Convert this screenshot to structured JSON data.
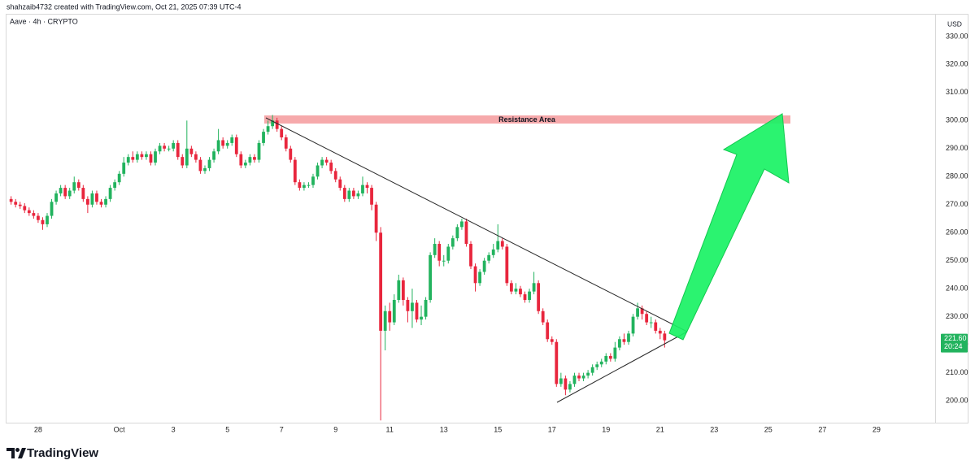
{
  "chart_data": {
    "type": "candlestick",
    "caption": "shahzaib4732 created with TradingView.com, Oct 21, 2025 07:39 UTC-4",
    "title": "Aave · 4h · CRYPTO",
    "currency": "USD",
    "annotation": "Resistance Area",
    "countdown": "20:24",
    "brand": "TradingView",
    "up_color": "#22b35e",
    "down_color": "#e8263d",
    "grid": false,
    "last_price": {
      "value": 221.6,
      "label": "221.60"
    },
    "xlim": [
      -3.17,
      31.17
    ],
    "xticks": [
      {
        "value": -2,
        "label": "28"
      },
      {
        "value": 1,
        "label": "Oct"
      },
      3,
      5,
      7,
      9,
      11,
      13,
      15,
      17,
      19,
      21,
      23,
      25,
      27,
      29
    ],
    "ylim": [
      192.2,
      337.8
    ],
    "yticks": [
      {
        "value": 200,
        "label": "200.00"
      },
      {
        "value": 210,
        "label": "210.00"
      },
      {
        "value": 220,
        "label": "220.00"
      },
      {
        "value": 230,
        "label": "230.00"
      },
      {
        "value": 240,
        "label": "240.00"
      },
      {
        "value": 250,
        "label": "250.00"
      },
      {
        "value": 260,
        "label": "260.00"
      },
      {
        "value": 270,
        "label": "270.00"
      },
      {
        "value": 280,
        "label": "280.00"
      },
      {
        "value": 290,
        "label": "290.00"
      },
      {
        "value": 300,
        "label": "300.00"
      },
      {
        "value": 310,
        "label": "310.00"
      },
      {
        "value": 320,
        "label": "320.00"
      },
      {
        "value": 330,
        "label": "330.00"
      }
    ],
    "x": [
      -3,
      -2.8333,
      -2.6667,
      -2.5,
      -2.3333,
      -2.1667,
      -2,
      -1.8333,
      -1.6667,
      -1.5,
      -1.3333,
      -1.1667,
      -1,
      -0.8333,
      -0.6667,
      -0.5,
      -0.3333,
      -0.1667,
      0,
      0.1667,
      0.3333,
      0.5,
      0.6667,
      0.8333,
      1,
      1.1667,
      1.3333,
      1.5,
      1.6667,
      1.8333,
      2,
      2.1667,
      2.3333,
      2.5,
      2.6667,
      2.8333,
      3,
      3.1667,
      3.3333,
      3.5,
      3.6667,
      3.8333,
      4,
      4.1667,
      4.3333,
      4.5,
      4.6667,
      4.8333,
      5,
      5.1667,
      5.3333,
      5.5,
      5.6667,
      5.8333,
      6,
      6.1667,
      6.3333,
      6.5,
      6.6667,
      6.8333,
      7,
      7.1667,
      7.3333,
      7.5,
      7.6667,
      7.8333,
      8,
      8.1667,
      8.3333,
      8.5,
      8.6667,
      8.8333,
      9,
      9.1667,
      9.3333,
      9.5,
      9.6667,
      9.8333,
      10,
      10.1667,
      10.3333,
      10.5,
      10.6667,
      10.8333,
      11,
      11.1667,
      11.3333,
      11.5,
      11.6667,
      11.8333,
      12,
      12.1667,
      12.3333,
      12.5,
      12.6667,
      12.8333,
      13,
      13.1667,
      13.3333,
      13.5,
      13.6667,
      13.8333,
      14,
      14.1667,
      14.3333,
      14.5,
      14.6667,
      14.8333,
      15,
      15.1667,
      15.3333,
      15.5,
      15.6667,
      15.8333,
      16,
      16.1667,
      16.3333,
      16.5,
      16.6667,
      16.8333,
      17,
      17.1667,
      17.3333,
      17.5,
      17.6667,
      17.8333,
      18,
      18.1667,
      18.3333,
      18.5,
      18.6667,
      18.8333,
      19,
      19.1667,
      19.3333,
      19.5,
      19.6667,
      19.8333,
      20,
      20.1667,
      20.3333,
      20.5,
      20.6667,
      20.8333,
      21,
      21.1667
    ],
    "open": [
      272,
      271,
      270,
      269.5,
      268,
      267,
      266,
      264.5,
      263,
      266,
      271,
      274,
      276,
      273,
      275,
      278,
      276,
      272,
      270,
      274,
      271,
      270,
      272,
      276,
      278,
      281,
      285,
      287,
      286,
      288,
      287,
      288,
      285,
      289,
      291,
      290,
      290,
      292,
      287,
      284,
      290,
      288,
      286,
      282,
      283,
      286,
      289,
      293,
      291,
      292,
      294,
      288,
      284,
      285,
      287,
      286,
      292,
      296,
      298,
      300,
      297,
      294,
      290,
      286,
      278,
      276,
      277,
      277,
      280,
      284,
      286,
      285,
      282,
      279,
      276,
      272,
      275,
      273,
      274,
      277,
      276,
      270,
      260,
      225,
      232,
      228,
      236,
      243,
      236,
      232,
      235,
      229,
      230,
      236,
      252,
      256,
      250,
      250,
      255,
      258,
      262,
      264,
      256,
      248,
      242,
      246,
      250,
      252,
      254,
      257,
      255,
      242,
      239,
      240,
      238,
      236,
      239,
      242,
      232,
      228,
      222,
      221,
      206,
      208,
      204,
      206,
      209,
      208,
      209,
      210,
      212,
      213,
      214,
      216,
      215,
      219,
      222,
      221,
      224,
      230,
      233,
      231,
      228,
      228,
      225,
      224
    ],
    "high": [
      273,
      272,
      271,
      270.5,
      269,
      268,
      267,
      265.5,
      267,
      272,
      275,
      277,
      277,
      276,
      280,
      279,
      277,
      273,
      275,
      275,
      272,
      273,
      277,
      279,
      282,
      287,
      288,
      289,
      289,
      289,
      289,
      289,
      290,
      292,
      292,
      291,
      293,
      293,
      288,
      300,
      291,
      289,
      287,
      284,
      287,
      290,
      297,
      294,
      293,
      295,
      295,
      289,
      286,
      288,
      288,
      293,
      297,
      300,
      302,
      301,
      298,
      295,
      291,
      287,
      279,
      278,
      278,
      281,
      285,
      287,
      287,
      286,
      283,
      280,
      277,
      276,
      276,
      275,
      280,
      278,
      277,
      271,
      262,
      234,
      235,
      238,
      245,
      244,
      237,
      240,
      236,
      234,
      237,
      253,
      258,
      257,
      252,
      256,
      259,
      263,
      265,
      265,
      257,
      249,
      247,
      251,
      253,
      256,
      263,
      258,
      256,
      243,
      242,
      241,
      239,
      240,
      246,
      243,
      233,
      229,
      223,
      222,
      210,
      209,
      207,
      210,
      210,
      210,
      211,
      213,
      214,
      215,
      217,
      217,
      221,
      223,
      224,
      225,
      231,
      235,
      234,
      232,
      230,
      229,
      226,
      225
    ],
    "low": [
      270,
      269,
      268.5,
      267,
      266,
      265,
      263.5,
      261,
      262,
      265,
      270,
      273,
      272,
      272,
      274,
      275,
      271,
      267,
      269,
      270,
      269,
      269,
      271,
      275,
      277,
      280,
      284,
      285,
      285,
      286,
      286,
      284,
      284,
      288,
      289,
      289,
      289,
      286,
      283,
      283,
      287,
      285,
      281,
      281,
      282,
      285,
      288,
      290,
      290,
      291,
      287,
      283,
      283,
      284,
      285,
      285,
      291,
      295,
      297,
      296,
      293,
      289,
      285,
      277,
      275,
      275,
      276,
      276,
      279,
      283,
      284,
      281,
      278,
      275,
      271,
      271,
      272,
      272,
      273,
      274,
      268,
      257,
      193,
      218,
      225,
      227,
      235,
      234,
      228,
      226,
      228,
      227,
      229,
      235,
      251,
      248,
      248,
      249,
      254,
      257,
      261,
      255,
      247,
      239,
      241,
      245,
      249,
      251,
      253,
      254,
      241,
      238,
      238,
      237,
      235,
      235,
      238,
      231,
      227,
      221,
      220,
      205,
      205,
      202,
      203,
      205,
      207,
      207,
      208,
      209,
      211,
      212,
      213,
      214,
      214,
      218,
      220,
      220,
      223,
      229,
      229,
      227,
      226,
      224,
      222,
      219
    ],
    "close": [
      271,
      270,
      269.5,
      268,
      267,
      266,
      264.5,
      263,
      266,
      271,
      274,
      276,
      273,
      275,
      278,
      276,
      272,
      270,
      274,
      271,
      270,
      272,
      276,
      278,
      281,
      285,
      287,
      286,
      288,
      287,
      288,
      285,
      289,
      291,
      290,
      290,
      292,
      287,
      284,
      290,
      288,
      286,
      282,
      283,
      286,
      289,
      293,
      291,
      292,
      294,
      288,
      284,
      285,
      287,
      286,
      292,
      296,
      298,
      300,
      297,
      294,
      290,
      286,
      278,
      276,
      277,
      277,
      280,
      284,
      286,
      285,
      282,
      279,
      276,
      272,
      275,
      273,
      274,
      277,
      276,
      270,
      260,
      225,
      232,
      228,
      236,
      243,
      236,
      232,
      235,
      229,
      230,
      236,
      252,
      256,
      250,
      250,
      255,
      258,
      262,
      264,
      256,
      248,
      242,
      246,
      250,
      252,
      254,
      257,
      255,
      242,
      239,
      240,
      238,
      236,
      239,
      242,
      232,
      228,
      222,
      221,
      206,
      208,
      204,
      206,
      209,
      208,
      209,
      210,
      212,
      213,
      214,
      216,
      215,
      219,
      222,
      221,
      224,
      230,
      233,
      231,
      228,
      228,
      225,
      224,
      221.6
    ]
  }
}
